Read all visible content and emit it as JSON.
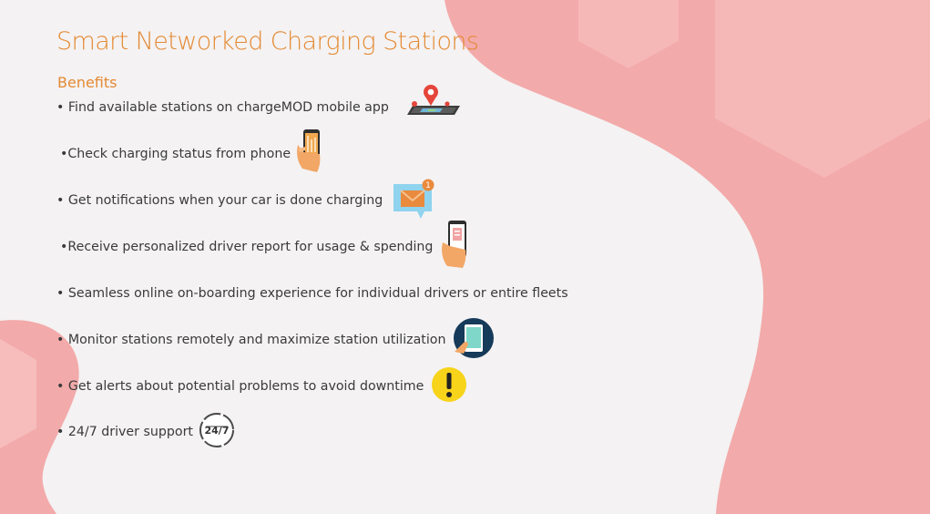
{
  "slide": {
    "title": "Smart Networked Charging Stations",
    "subtitle": "Benefits",
    "items": [
      {
        "text": "• Find available stations on chargeMOD mobile app",
        "icon": "map-pin-icon"
      },
      {
        "text": "•Check charging status from phone",
        "icon": "phone-in-hand-icon"
      },
      {
        "text": "• Get notifications when your car is done charging",
        "icon": "envelope-notification-icon"
      },
      {
        "text": "•Receive personalized driver report for usage & spending",
        "icon": "phone-report-icon"
      },
      {
        "text": "• Seamless online on-boarding experience for individual drivers or entire fleets",
        "icon": ""
      },
      {
        "text": "• Monitor stations remotely and maximize station utilization",
        "icon": "tablet-touch-icon"
      },
      {
        "text": "• Get alerts about potential problems to avoid downtime",
        "icon": "alert-icon"
      },
      {
        "text": "• 24/7 driver support",
        "icon": "24-7-icon"
      }
    ],
    "icon_labels": {
      "support": "24/7",
      "notification_count": "1"
    },
    "colors": {
      "title": "#e48a33",
      "body_text": "#3a3a3a",
      "blob": "#f3aaaa",
      "background": "#f4f2f3"
    }
  }
}
